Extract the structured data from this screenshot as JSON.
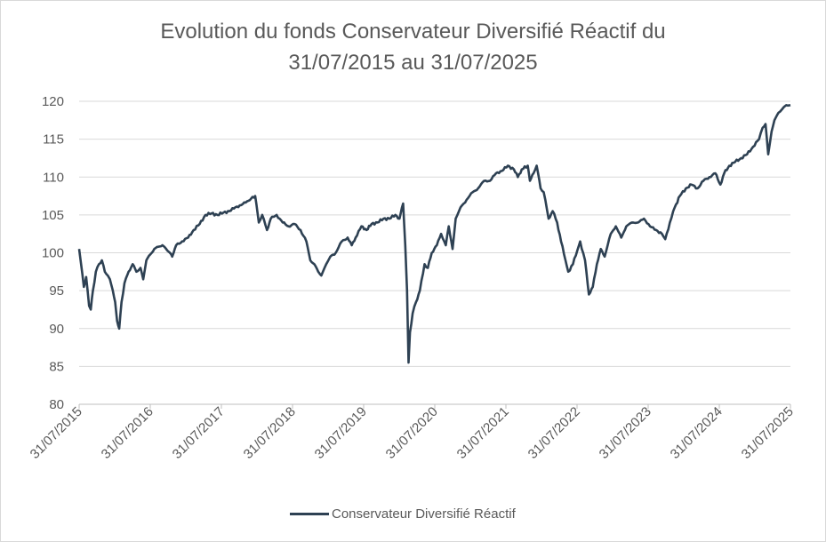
{
  "chart_data": {
    "type": "line",
    "title_line1": "Evolution du fonds Conservateur Diversifié Réactif du",
    "title_line2": "31/07/2015 au 31/07/2025",
    "xlabel": "",
    "ylabel": "",
    "ylim": [
      80,
      120
    ],
    "y_ticks": [
      "80",
      "85",
      "90",
      "95",
      "100",
      "105",
      "110",
      "115",
      "120"
    ],
    "x_ticks": [
      "31/07/2015",
      "31/07/2016",
      "31/07/2017",
      "31/07/2018",
      "31/07/2019",
      "31/07/2020",
      "31/07/2021",
      "31/07/2022",
      "31/07/2023",
      "31/07/2024",
      "31/07/2025"
    ],
    "grid": "horizontal",
    "legend_position": "bottom",
    "series": [
      {
        "name": "Conservateur Diversifié Réactif",
        "color": "#2e4153",
        "points": [
          [
            "2015-07-31",
            100.5
          ],
          [
            "2015-08-10",
            98.5
          ],
          [
            "2015-08-24",
            95.5
          ],
          [
            "2015-09-05",
            96.8
          ],
          [
            "2015-09-20",
            93.0
          ],
          [
            "2015-09-29",
            92.5
          ],
          [
            "2015-10-10",
            95.0
          ],
          [
            "2015-10-25",
            97.5
          ],
          [
            "2015-11-10",
            98.5
          ],
          [
            "2015-11-25",
            99.0
          ],
          [
            "2015-12-10",
            97.5
          ],
          [
            "2015-12-25",
            97.0
          ],
          [
            "2016-01-05",
            96.5
          ],
          [
            "2016-01-20",
            95.0
          ],
          [
            "2016-02-01",
            93.5
          ],
          [
            "2016-02-11",
            91.0
          ],
          [
            "2016-02-22",
            90.0
          ],
          [
            "2016-03-05",
            93.5
          ],
          [
            "2016-03-20",
            96.0
          ],
          [
            "2016-04-10",
            97.5
          ],
          [
            "2016-05-01",
            98.5
          ],
          [
            "2016-05-20",
            97.5
          ],
          [
            "2016-06-10",
            98.0
          ],
          [
            "2016-06-24",
            96.5
          ],
          [
            "2016-07-10",
            99.0
          ],
          [
            "2016-07-31",
            99.8
          ],
          [
            "2016-08-20",
            100.5
          ],
          [
            "2016-09-10",
            100.8
          ],
          [
            "2016-10-01",
            101.0
          ],
          [
            "2016-10-20",
            100.5
          ],
          [
            "2016-11-08",
            100.0
          ],
          [
            "2016-11-20",
            99.5
          ],
          [
            "2016-12-10",
            101.0
          ],
          [
            "2017-01-10",
            101.5
          ],
          [
            "2017-02-10",
            102.0
          ],
          [
            "2017-03-10",
            103.0
          ],
          [
            "2017-04-10",
            103.8
          ],
          [
            "2017-05-10",
            105.0
          ],
          [
            "2017-06-10",
            105.2
          ],
          [
            "2017-07-10",
            105.0
          ],
          [
            "2017-08-10",
            105.3
          ],
          [
            "2017-09-10",
            105.5
          ],
          [
            "2017-10-10",
            106.0
          ],
          [
            "2017-11-10",
            106.3
          ],
          [
            "2017-12-10",
            106.8
          ],
          [
            "2018-01-20",
            107.5
          ],
          [
            "2018-02-08",
            104.0
          ],
          [
            "2018-02-25",
            105.0
          ],
          [
            "2018-03-22",
            103.0
          ],
          [
            "2018-04-10",
            104.5
          ],
          [
            "2018-05-10",
            105.0
          ],
          [
            "2018-06-10",
            104.0
          ],
          [
            "2018-07-10",
            103.5
          ],
          [
            "2018-08-10",
            103.8
          ],
          [
            "2018-09-10",
            103.0
          ],
          [
            "2018-10-10",
            101.5
          ],
          [
            "2018-10-30",
            99.0
          ],
          [
            "2018-11-20",
            98.5
          ],
          [
            "2018-12-10",
            97.5
          ],
          [
            "2018-12-26",
            97.0
          ],
          [
            "2019-01-20",
            98.5
          ],
          [
            "2019-02-10",
            99.5
          ],
          [
            "2019-03-10",
            100.0
          ],
          [
            "2019-04-10",
            101.5
          ],
          [
            "2019-05-10",
            102.0
          ],
          [
            "2019-05-31",
            101.0
          ],
          [
            "2019-06-20",
            102.0
          ],
          [
            "2019-07-20",
            103.5
          ],
          [
            "2019-08-15",
            103.0
          ],
          [
            "2019-09-10",
            103.8
          ],
          [
            "2019-10-10",
            104.0
          ],
          [
            "2019-11-10",
            104.5
          ],
          [
            "2019-12-10",
            104.5
          ],
          [
            "2020-01-10",
            105.0
          ],
          [
            "2020-01-31",
            104.5
          ],
          [
            "2020-02-19",
            106.5
          ],
          [
            "2020-03-01",
            101.0
          ],
          [
            "2020-03-10",
            95.0
          ],
          [
            "2020-03-18",
            85.5
          ],
          [
            "2020-03-25",
            89.5
          ],
          [
            "2020-04-08",
            92.0
          ],
          [
            "2020-04-25",
            93.5
          ],
          [
            "2020-05-15",
            95.0
          ],
          [
            "2020-06-08",
            98.5
          ],
          [
            "2020-06-25",
            98.0
          ],
          [
            "2020-07-15",
            100.0
          ],
          [
            "2020-08-10",
            101.0
          ],
          [
            "2020-09-01",
            102.5
          ],
          [
            "2020-09-25",
            101.0
          ],
          [
            "2020-10-10",
            103.5
          ],
          [
            "2020-10-30",
            100.5
          ],
          [
            "2020-11-15",
            104.5
          ],
          [
            "2020-12-10",
            106.0
          ],
          [
            "2021-01-10",
            107.0
          ],
          [
            "2021-02-10",
            108.0
          ],
          [
            "2021-03-10",
            108.5
          ],
          [
            "2021-04-10",
            109.5
          ],
          [
            "2021-05-10",
            109.5
          ],
          [
            "2021-06-10",
            110.5
          ],
          [
            "2021-07-10",
            110.8
          ],
          [
            "2021-08-10",
            111.5
          ],
          [
            "2021-09-10",
            111.0
          ],
          [
            "2021-09-30",
            110.0
          ],
          [
            "2021-10-20",
            111.0
          ],
          [
            "2021-11-20",
            111.5
          ],
          [
            "2021-12-01",
            109.5
          ],
          [
            "2021-12-20",
            110.5
          ],
          [
            "2022-01-05",
            111.5
          ],
          [
            "2022-01-25",
            108.5
          ],
          [
            "2022-02-10",
            108.0
          ],
          [
            "2022-03-07",
            104.5
          ],
          [
            "2022-03-28",
            105.5
          ],
          [
            "2022-04-20",
            104.0
          ],
          [
            "2022-05-10",
            101.5
          ],
          [
            "2022-06-16",
            97.5
          ],
          [
            "2022-07-10",
            98.5
          ],
          [
            "2022-08-16",
            101.5
          ],
          [
            "2022-09-10",
            99.0
          ],
          [
            "2022-09-30",
            94.5
          ],
          [
            "2022-10-20",
            95.5
          ],
          [
            "2022-11-10",
            98.5
          ],
          [
            "2022-11-30",
            100.5
          ],
          [
            "2022-12-20",
            99.5
          ],
          [
            "2023-01-20",
            102.5
          ],
          [
            "2023-02-15",
            103.5
          ],
          [
            "2023-03-15",
            102.0
          ],
          [
            "2023-04-10",
            103.5
          ],
          [
            "2023-05-10",
            104.0
          ],
          [
            "2023-06-10",
            104.0
          ],
          [
            "2023-07-10",
            104.5
          ],
          [
            "2023-08-10",
            103.5
          ],
          [
            "2023-09-10",
            103.0
          ],
          [
            "2023-10-10",
            102.5
          ],
          [
            "2023-10-27",
            101.8
          ],
          [
            "2023-11-20",
            104.0
          ],
          [
            "2023-12-15",
            106.0
          ],
          [
            "2024-01-10",
            107.5
          ],
          [
            "2024-02-10",
            108.5
          ],
          [
            "2024-03-10",
            109.0
          ],
          [
            "2024-04-10",
            108.5
          ],
          [
            "2024-05-10",
            109.5
          ],
          [
            "2024-06-10",
            110.0
          ],
          [
            "2024-07-10",
            110.5
          ],
          [
            "2024-08-05",
            109.0
          ],
          [
            "2024-08-25",
            110.5
          ],
          [
            "2024-09-20",
            111.5
          ],
          [
            "2024-10-20",
            112.0
          ],
          [
            "2024-11-20",
            112.5
          ],
          [
            "2024-12-20",
            113.0
          ],
          [
            "2025-01-20",
            114.0
          ],
          [
            "2025-02-20",
            115.0
          ],
          [
            "2025-03-10",
            116.5
          ],
          [
            "2025-03-25",
            117.0
          ],
          [
            "2025-04-08",
            113.0
          ],
          [
            "2025-04-25",
            116.0
          ],
          [
            "2025-05-10",
            117.5
          ],
          [
            "2025-05-31",
            118.5
          ],
          [
            "2025-06-20",
            119.0
          ],
          [
            "2025-07-10",
            119.5
          ],
          [
            "2025-07-31",
            119.5
          ]
        ]
      }
    ]
  }
}
